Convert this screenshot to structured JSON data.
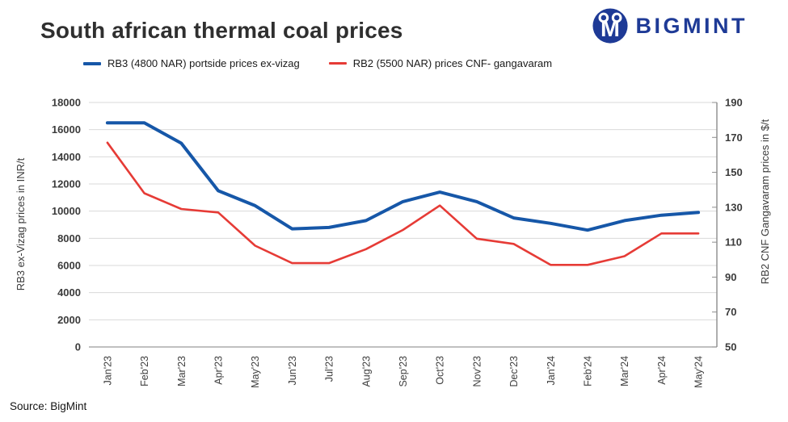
{
  "header": {
    "title": "South african thermal coal prices",
    "logo_text": "BIGMINT"
  },
  "footer": {
    "source": "Source: BigMint"
  },
  "colors": {
    "rb3_blue": "#1657a8",
    "rb2_red": "#e63b36",
    "brand_navy": "#1e3a96",
    "gridline": "#d9d9d9",
    "axis_line": "#8c8c8c",
    "tick_text": "#3b3b3b"
  },
  "chart_data": {
    "type": "line",
    "title": "South african thermal coal prices",
    "grid": true,
    "legend_position": "top",
    "categories": [
      "Jan'23",
      "Feb'23",
      "Mar'23",
      "Apr'23",
      "May'23",
      "Jun'23",
      "Jul'23",
      "Aug'23",
      "Sep'23",
      "Oct'23",
      "Nov'23",
      "Dec'23",
      "Jan'24",
      "Feb'24",
      "Mar'24",
      "Apr'24",
      "May'24"
    ],
    "series": [
      {
        "name": "RB3 (4800 NAR) portside prices ex-vizag",
        "axis": "left",
        "unit": "INR/t",
        "color": "#1657a8",
        "values": [
          16500,
          16500,
          15000,
          11500,
          10400,
          8700,
          8800,
          9300,
          10700,
          11400,
          10700,
          9500,
          9100,
          8600,
          9300,
          9700,
          9900
        ]
      },
      {
        "name": "RB2 (5500 NAR) prices CNF- gangavaram",
        "axis": "right",
        "unit": "$/t",
        "color": "#e63b36",
        "values": [
          167,
          138,
          129,
          127,
          108,
          98,
          98,
          106,
          117,
          131,
          112,
          109,
          97,
          97,
          102,
          115,
          115
        ]
      }
    ],
    "left_axis": {
      "label": "RB3 ex-Vizag prices in INR/t",
      "min": 0,
      "max": 18000,
      "step": 2000
    },
    "right_axis": {
      "label": "RB2 CNF Gangavaram prices in $/t",
      "min": 50,
      "max": 190,
      "step": 20
    }
  }
}
